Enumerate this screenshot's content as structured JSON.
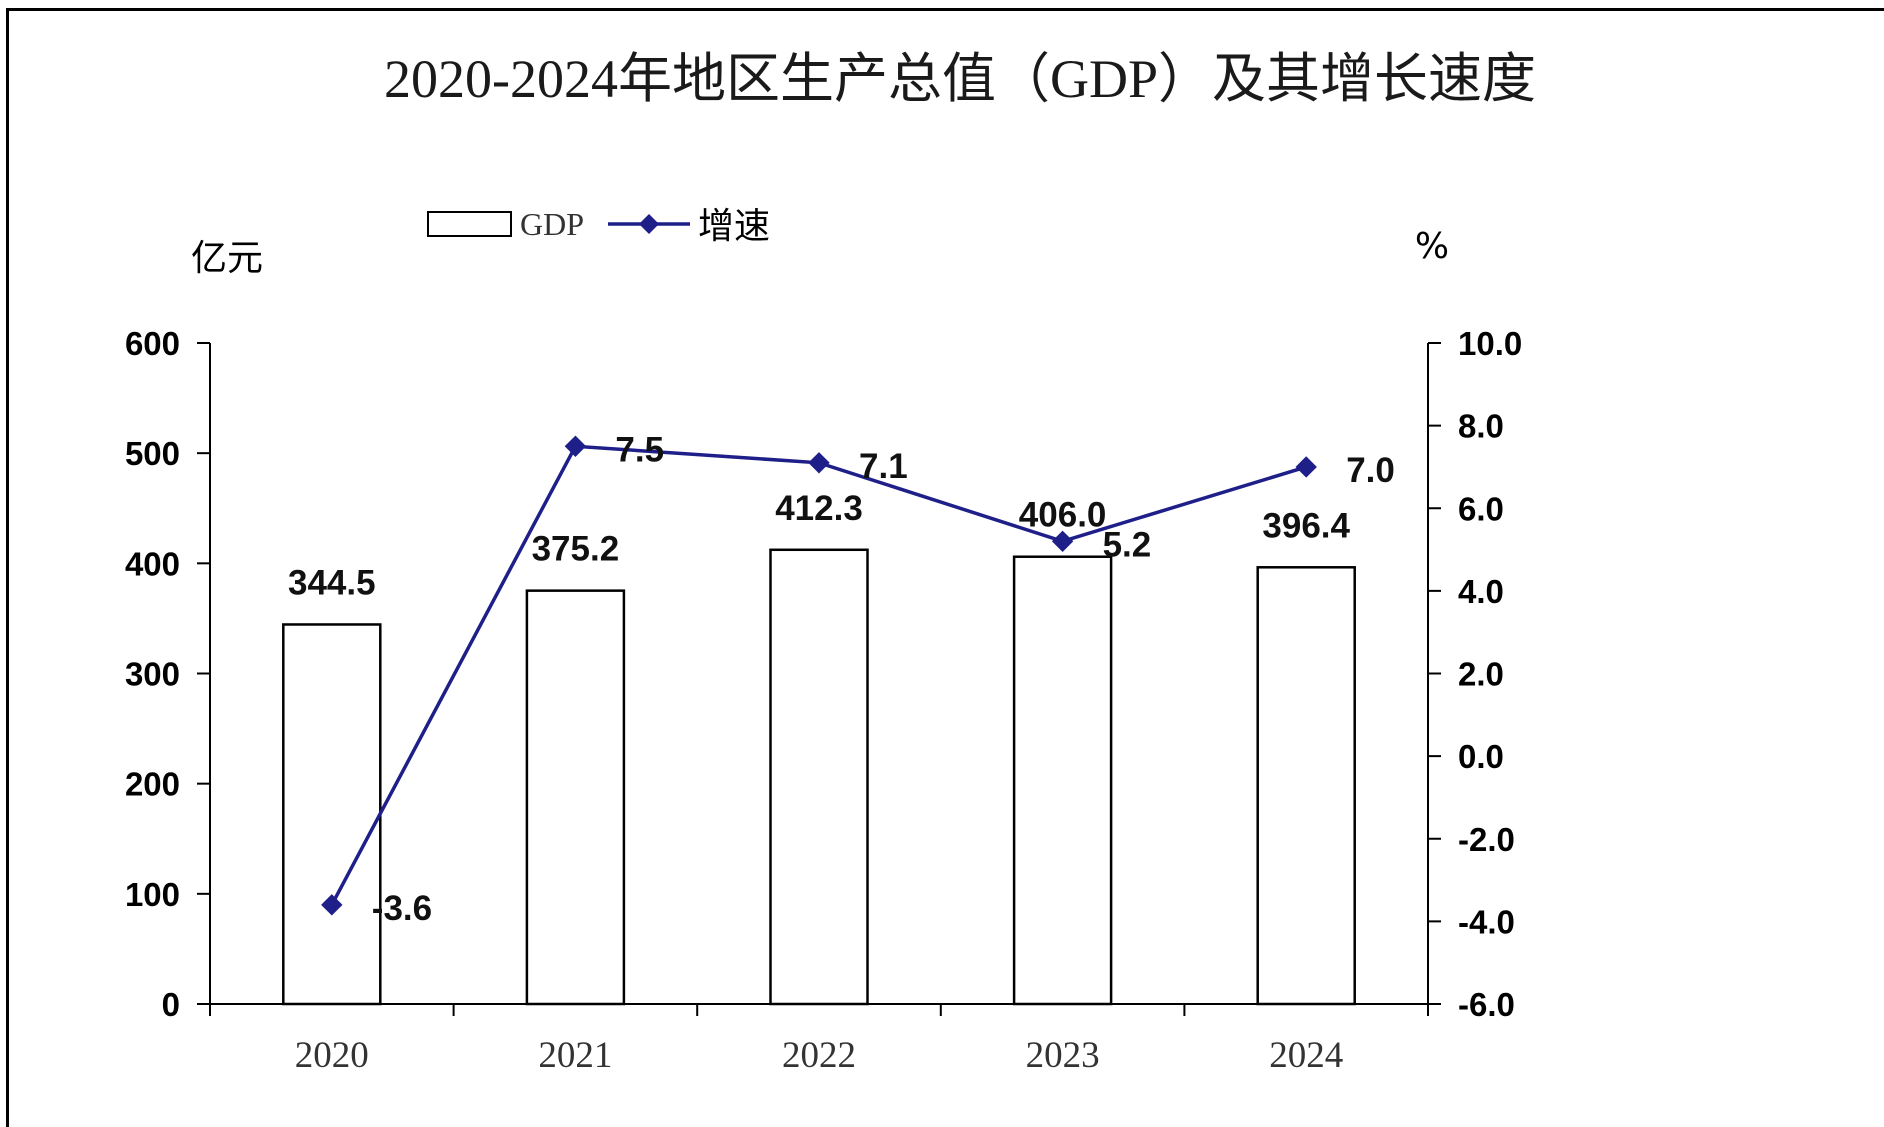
{
  "chart_data": {
    "type": "bar",
    "title": "2020-2024年地区生产总值（GDP）及其增长速度",
    "left_unit": "亿元",
    "right_unit": "%",
    "categories": [
      "2020",
      "2021",
      "2022",
      "2023",
      "2024"
    ],
    "series": [
      {
        "name": "GDP",
        "type": "bar",
        "axis": "left",
        "values": [
          344.5,
          375.2,
          412.3,
          406.0,
          396.4
        ],
        "labels": [
          "344.5",
          "375.2",
          "412.3",
          "406.0",
          "396.4"
        ],
        "fill": "#ffffff",
        "stroke": "#000000"
      },
      {
        "name": "增速",
        "type": "line",
        "axis": "right",
        "values": [
          -3.6,
          7.5,
          7.1,
          5.2,
          7.0
        ],
        "labels": [
          "-3.6",
          "7.5",
          "7.1",
          "5.2",
          "7.0"
        ],
        "color": "#1f1f8a",
        "marker": "diamond"
      }
    ],
    "left_axis": {
      "min": 0,
      "max": 600,
      "ticks": [
        "0",
        "100",
        "200",
        "300",
        "400",
        "500",
        "600"
      ]
    },
    "right_axis": {
      "min": -6,
      "max": 10,
      "ticks": [
        "-6.0",
        "-4.0",
        "-2.0",
        "0.0",
        "2.0",
        "4.0",
        "6.0",
        "8.0",
        "10.0"
      ]
    },
    "grid": false,
    "legend_position": "top-left"
  }
}
